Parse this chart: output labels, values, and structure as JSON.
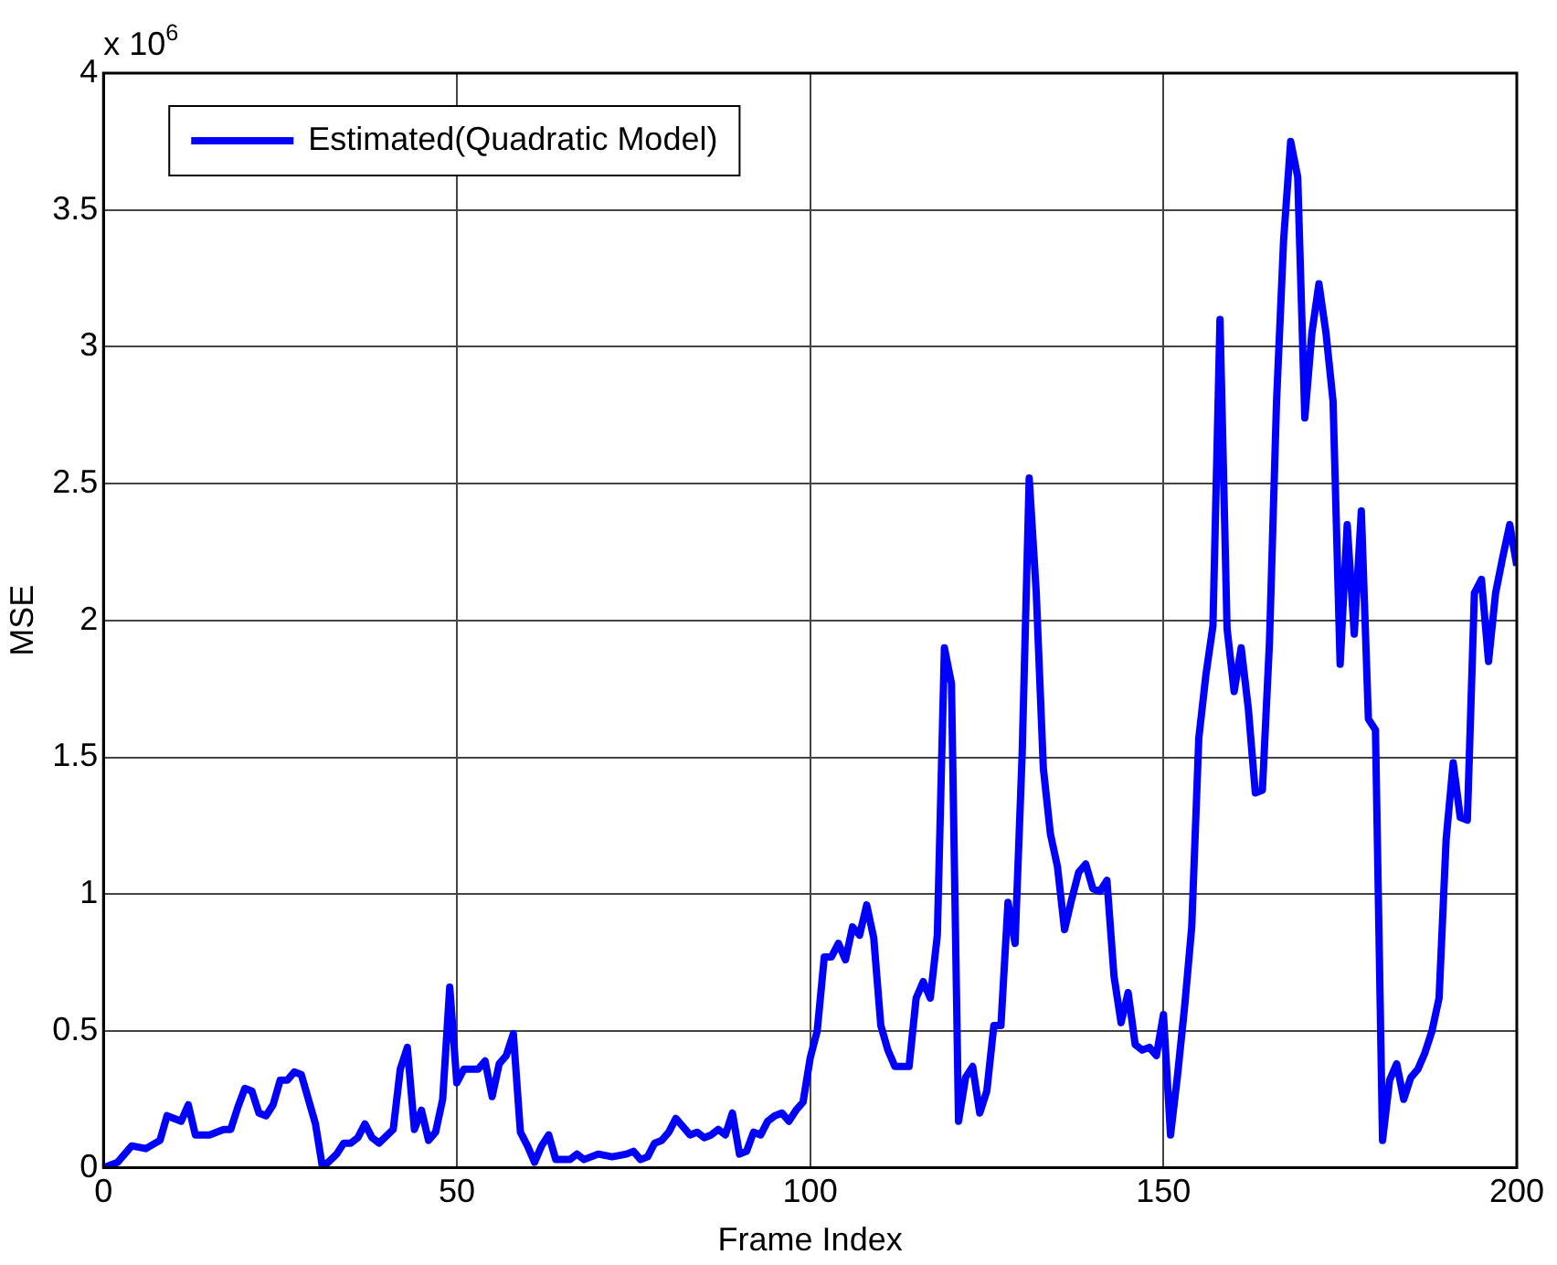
{
  "chart_data": {
    "type": "line",
    "xlabel": "Frame Index",
    "ylabel": "MSE",
    "annotations": [
      "x 10$^{6}$"
    ],
    "xlim": [
      0,
      200
    ],
    "xticks": [
      0,
      50,
      100,
      150,
      200
    ],
    "ylim": [
      0,
      4
    ],
    "yticks": [
      0,
      0.5,
      1,
      1.5,
      2,
      2.5,
      3,
      3.5,
      4
    ],
    "grid": true,
    "legend": "top left",
    "marker": "none",
    "line_style": "solid",
    "series": [
      {
        "name": "Estimated(Quadratic Model)",
        "color": "#0000ff",
        "x": [
          0,
          2,
          4,
          6,
          8,
          9,
          11,
          12,
          13,
          15,
          17,
          18,
          19,
          20,
          21,
          22,
          23,
          24,
          25,
          26,
          27,
          28,
          30,
          31,
          33,
          34,
          35,
          36,
          37,
          38,
          39,
          41,
          42,
          43,
          44,
          45,
          46,
          47,
          48,
          49,
          50,
          51,
          52,
          53,
          54,
          55,
          56,
          57,
          58,
          59,
          60,
          61,
          62,
          63,
          64,
          66,
          67,
          68,
          70,
          72,
          74,
          75,
          76,
          77,
          78,
          79,
          80,
          81,
          82,
          83,
          84,
          85,
          86,
          87,
          88,
          89,
          90,
          91,
          92,
          93,
          94,
          95,
          96,
          97,
          98,
          99,
          100,
          101,
          102,
          103,
          104,
          105,
          106,
          107,
          108,
          109,
          110,
          111,
          112,
          113,
          114,
          115,
          116,
          117,
          118,
          119,
          120,
          121,
          122,
          123,
          124,
          125,
          126,
          127,
          128,
          129,
          130,
          131,
          132,
          133,
          134,
          135,
          136,
          137,
          138,
          139,
          140,
          141,
          142,
          143,
          144,
          145,
          146,
          147,
          148,
          149,
          150,
          151,
          152,
          153,
          154,
          155,
          156,
          157,
          158,
          159,
          160,
          161,
          162,
          163,
          164,
          165,
          166,
          167,
          168,
          169,
          170,
          171,
          172,
          173,
          174,
          175,
          176,
          177,
          178,
          179,
          180,
          181,
          182,
          183,
          184,
          185,
          186,
          187,
          188,
          189,
          190,
          191,
          192,
          193,
          194,
          195,
          196,
          197,
          198,
          199,
          200
        ],
        "values": [
          0,
          0.02,
          0.08,
          0.07,
          0.1,
          0.19,
          0.17,
          0.23,
          0.12,
          0.12,
          0.14,
          0.14,
          0.22,
          0.29,
          0.28,
          0.2,
          0.19,
          0.23,
          0.32,
          0.32,
          0.35,
          0.34,
          0.16,
          0,
          0.05,
          0.09,
          0.09,
          0.11,
          0.16,
          0.11,
          0.09,
          0.14,
          0.36,
          0.44,
          0.14,
          0.21,
          0.1,
          0.13,
          0.25,
          0.66,
          0.31,
          0.36,
          0.36,
          0.36,
          0.39,
          0.26,
          0.38,
          0.41,
          0.49,
          0.13,
          0.08,
          0.02,
          0.08,
          0.12,
          0.03,
          0.03,
          0.05,
          0.03,
          0.05,
          0.04,
          0.05,
          0.06,
          0.03,
          0.04,
          0.09,
          0.1,
          0.13,
          0.18,
          0.15,
          0.12,
          0.13,
          0.11,
          0.12,
          0.14,
          0.12,
          0.2,
          0.05,
          0.06,
          0.13,
          0.12,
          0.17,
          0.19,
          0.2,
          0.17,
          0.21,
          0.24,
          0.4,
          0.5,
          0.77,
          0.77,
          0.82,
          0.76,
          0.88,
          0.85,
          0.96,
          0.84,
          0.52,
          0.43,
          0.37,
          0.37,
          0.37,
          0.62,
          0.68,
          0.62,
          0.85,
          1.9,
          1.77,
          0.17,
          0.33,
          0.37,
          0.2,
          0.28,
          0.52,
          0.52,
          0.97,
          0.82,
          1.51,
          2.52,
          2.1,
          1.46,
          1.22,
          1.1,
          0.87,
          0.98,
          1.08,
          1.11,
          1.02,
          1.01,
          1.05,
          0.7,
          0.53,
          0.64,
          0.45,
          0.43,
          0.44,
          0.41,
          0.56,
          0.12,
          0.34,
          0.59,
          0.88,
          1.57,
          1.8,
          1.98,
          3.1,
          1.97,
          1.74,
          1.9,
          1.68,
          1.37,
          1.38,
          1.92,
          2.8,
          3.39,
          3.75,
          3.62,
          2.74,
          3.05,
          3.23,
          3.05,
          2.8,
          1.84,
          2.35,
          1.95,
          2.4,
          1.64,
          1.6,
          0.1,
          0.32,
          0.38,
          0.25,
          0.33,
          0.36,
          0.42,
          0.5,
          0.62,
          1.2,
          1.48,
          1.28,
          1.27,
          2.1,
          2.15,
          1.85,
          2.1,
          2.23,
          2.35,
          2.2
        ]
      }
    ]
  }
}
